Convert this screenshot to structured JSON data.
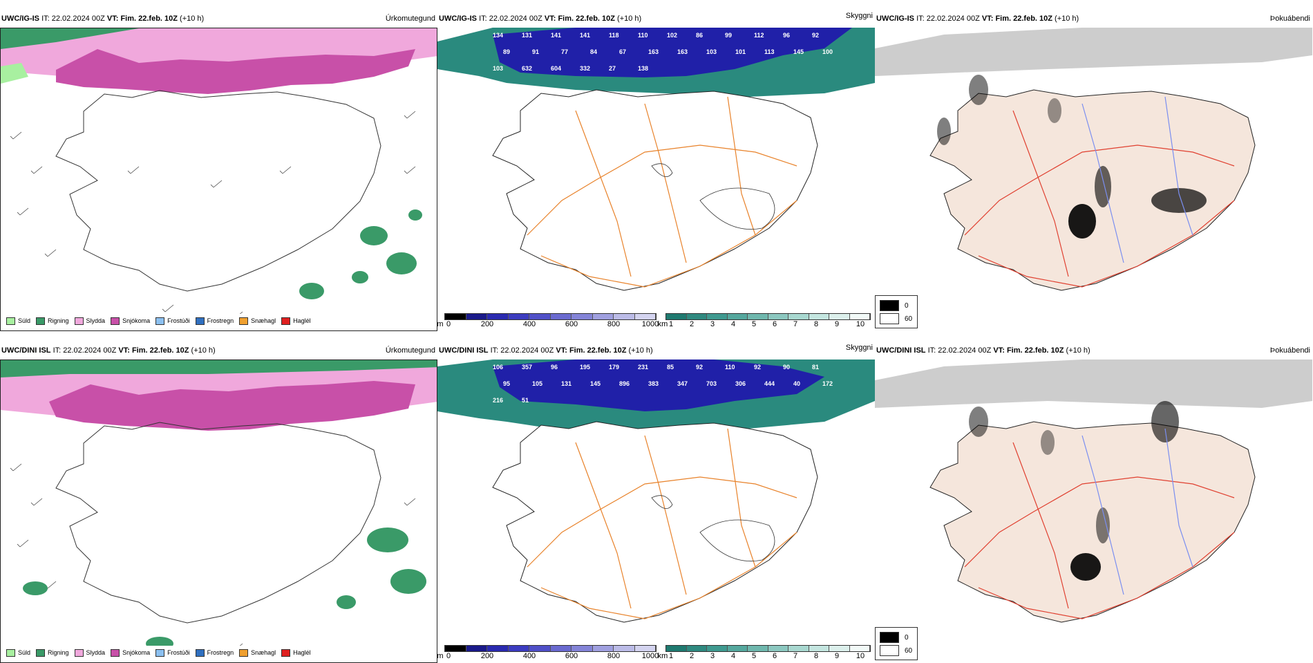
{
  "header": {
    "it_prefix": "IT:",
    "it_value": "22.02.2024 00Z",
    "vt_prefix": "VT:",
    "vt_value": "Fim. 22.feb. 10Z",
    "lead": "(+10 h)"
  },
  "rows": [
    {
      "source": "UWC/IG-IS"
    },
    {
      "source": "UWC/DINI ISL"
    }
  ],
  "panel_titles": {
    "precip_type": "Úrkomutegund",
    "visibility": "Skyggni",
    "fog": "Þokuábendi"
  },
  "precip_legend": [
    {
      "label": "Súld",
      "color": "#a8f0a0"
    },
    {
      "label": "Rigning",
      "color": "#3a9a68"
    },
    {
      "label": "Slydda",
      "color": "#f0a8dc"
    },
    {
      "label": "Snjókoma",
      "color": "#c850a8"
    },
    {
      "label": "Frostúði",
      "color": "#8cc0f0"
    },
    {
      "label": "Frostregn",
      "color": "#3070c0"
    },
    {
      "label": "Snæhagl",
      "color": "#f0a030"
    },
    {
      "label": "Haglél",
      "color": "#e02020"
    }
  ],
  "visibility_scale": {
    "m_unit": "m",
    "m_ticks": [
      "0",
      "200",
      "400",
      "600",
      "800",
      "1000"
    ],
    "km_unit": "km",
    "km_ticks": [
      "1",
      "2",
      "3",
      "4",
      "5",
      "6",
      "7",
      "8",
      "9",
      "10"
    ],
    "m_colors": [
      "#000000",
      "#1a1a8a",
      "#2a2ab0",
      "#3c3cc0",
      "#5050c8",
      "#6a6ad0",
      "#8484d8",
      "#a0a0e0",
      "#bcbce8",
      "#d4d4f0"
    ],
    "km_colors": [
      "#1f7a70",
      "#2f8a80",
      "#3f9a90",
      "#55a89e",
      "#6fb8ae",
      "#8cc8c0",
      "#a8d8d0",
      "#c4e6e0",
      "#dcf0ec",
      "#f2faf8"
    ]
  },
  "fog_legend": {
    "v0": "0",
    "v60": "60"
  },
  "visibility_labels": [
    [
      "134",
      "131",
      "141",
      "141",
      "118",
      "110",
      "102",
      "86",
      "99",
      "112",
      "96",
      "92",
      "89",
      "91",
      "77",
      "84",
      "67",
      "163",
      "163",
      "103",
      "101",
      "113",
      "145",
      "100",
      "103",
      "632",
      "604",
      "332",
      "27",
      "138"
    ],
    [
      "106",
      "357",
      "96",
      "195",
      "179",
      "231",
      "85",
      "92",
      "110",
      "92",
      "90",
      "81",
      "95",
      "105",
      "131",
      "145",
      "896",
      "383",
      "347",
      "703",
      "306",
      "444",
      "40",
      "172",
      "216",
      "51"
    ]
  ],
  "colors": {
    "snow": "#c850a8",
    "sleet": "#f0a8dc",
    "rain": "#3a9a68",
    "fog_sea": "#2a8a7e",
    "vis_low": "#2020a8",
    "land": "#f5e6dc",
    "road": "#e8822a",
    "red_road": "#e04030",
    "river": "#7a8ef0"
  }
}
